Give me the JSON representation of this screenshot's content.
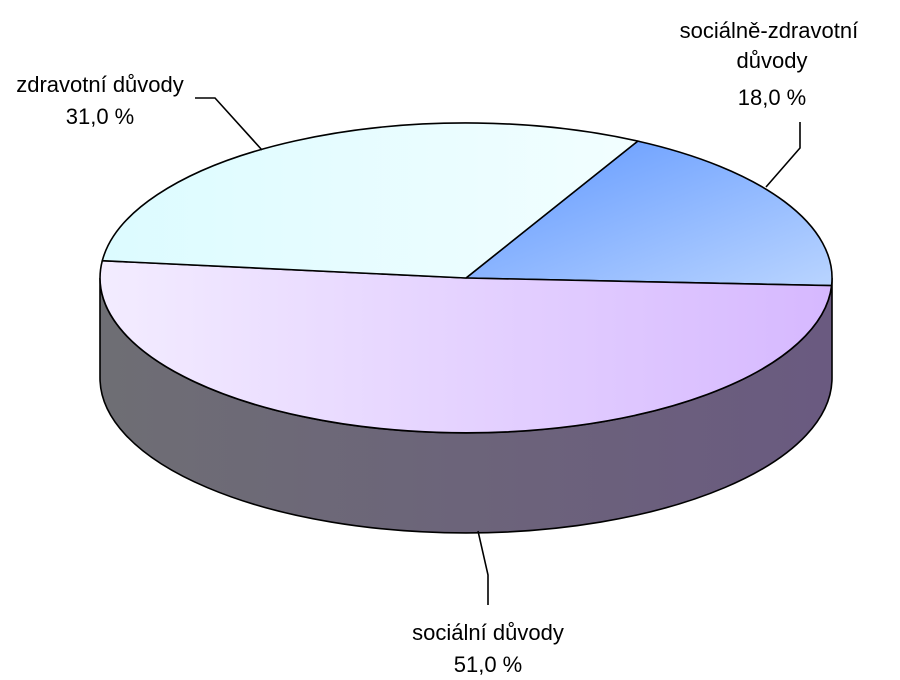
{
  "chart_data": {
    "type": "pie",
    "style": "3d",
    "legend": "none",
    "slices": [
      {
        "name_lines": [
          "sociálně-zdravotní",
          "důvody"
        ],
        "value": 18.0,
        "value_label": "18,0 %",
        "color": "#8fb6ff",
        "side_color": "#5d6a9a"
      },
      {
        "name_lines": [
          "sociální důvody"
        ],
        "value": 51.0,
        "value_label": "51,0 %",
        "color": "#e6d3ff",
        "side_color": "#6a5c7a"
      },
      {
        "name_lines": [
          "zdravotní důvody"
        ],
        "value": 31.0,
        "value_label": "31,0 %",
        "color": "#e4fbff",
        "side_color": "#6b6b72"
      }
    ]
  }
}
